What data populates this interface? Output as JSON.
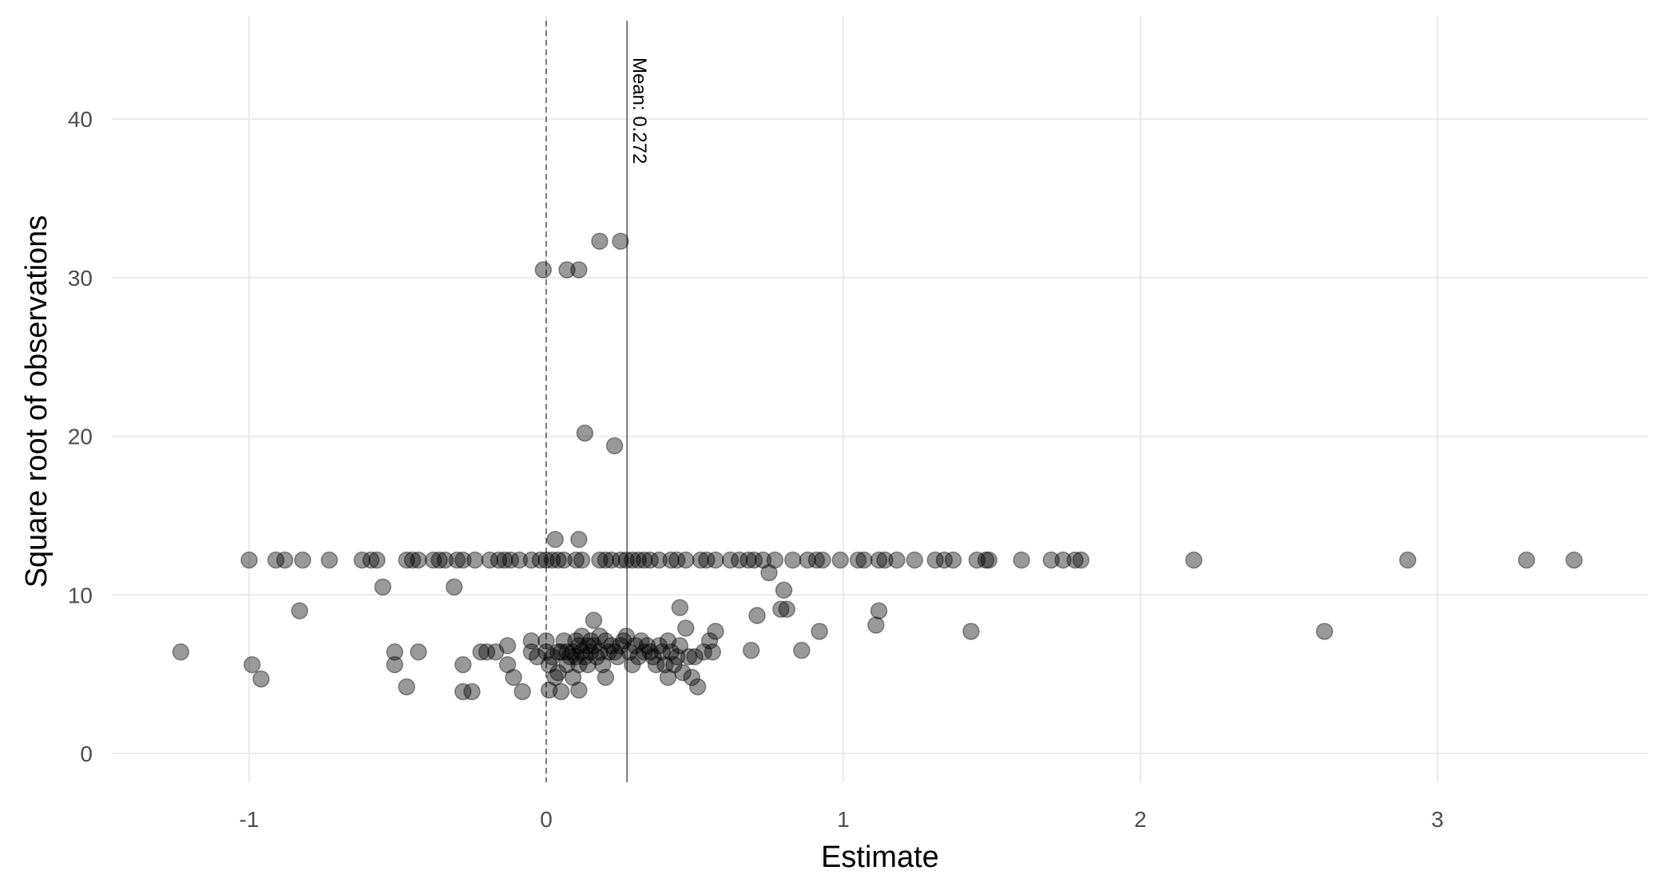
{
  "chart_data": {
    "type": "scatter",
    "xlabel": "Estimate",
    "ylabel": "Square root of observations",
    "xlim": [
      -1.5,
      3.7
    ],
    "ylim": [
      -2,
      46
    ],
    "x_ticks": [
      -1,
      0,
      1,
      2,
      3
    ],
    "y_ticks": [
      0,
      10,
      20,
      30,
      40
    ],
    "grid": true,
    "reference_lines": [
      {
        "x": 0,
        "style": "dashed"
      },
      {
        "x": 0.272,
        "style": "solid",
        "label": "Mean: 0.272"
      }
    ],
    "colors": {
      "point": "#000000",
      "grid": "#ebebeb",
      "tick_text": "#4d4d4d"
    },
    "points": [
      [
        -1.23,
        6.4
      ],
      [
        -0.99,
        5.6
      ],
      [
        -0.96,
        4.7
      ],
      [
        -0.83,
        9.0
      ],
      [
        -0.55,
        10.5
      ],
      [
        -0.51,
        6.4
      ],
      [
        -0.51,
        5.6
      ],
      [
        -0.47,
        4.2
      ],
      [
        -0.43,
        6.4
      ],
      [
        -0.31,
        10.5
      ],
      [
        -0.28,
        5.6
      ],
      [
        -0.28,
        3.9
      ],
      [
        -0.25,
        3.9
      ],
      [
        -0.22,
        6.4
      ],
      [
        -0.2,
        6.4
      ],
      [
        -0.17,
        6.4
      ],
      [
        -0.13,
        6.8
      ],
      [
        -0.13,
        5.6
      ],
      [
        -0.11,
        4.8
      ],
      [
        -0.08,
        3.9
      ],
      [
        -0.05,
        6.4
      ],
      [
        -0.05,
        7.1
      ],
      [
        -0.03,
        6.1
      ],
      [
        0.0,
        7.1
      ],
      [
        0.0,
        6.4
      ],
      [
        0.01,
        5.6
      ],
      [
        0.01,
        4.0
      ],
      [
        0.02,
        6.1
      ],
      [
        0.03,
        4.8
      ],
      [
        0.04,
        6.4
      ],
      [
        0.04,
        5.1
      ],
      [
        0.05,
        6.4
      ],
      [
        0.05,
        3.9
      ],
      [
        0.06,
        7.1
      ],
      [
        0.07,
        6.4
      ],
      [
        0.07,
        5.6
      ],
      [
        0.08,
        6.1
      ],
      [
        0.09,
        6.4
      ],
      [
        0.09,
        4.8
      ],
      [
        0.1,
        7.1
      ],
      [
        0.1,
        6.1
      ],
      [
        0.11,
        6.8
      ],
      [
        0.11,
        5.6
      ],
      [
        0.11,
        4.0
      ],
      [
        0.12,
        7.4
      ],
      [
        0.12,
        6.4
      ],
      [
        0.13,
        6.1
      ],
      [
        0.14,
        6.8
      ],
      [
        0.14,
        5.6
      ],
      [
        0.15,
        7.1
      ],
      [
        0.15,
        6.4
      ],
      [
        0.16,
        8.4
      ],
      [
        0.16,
        6.8
      ],
      [
        0.17,
        6.1
      ],
      [
        0.18,
        7.4
      ],
      [
        0.18,
        6.4
      ],
      [
        0.19,
        5.6
      ],
      [
        0.2,
        4.8
      ],
      [
        0.2,
        7.1
      ],
      [
        0.21,
        6.4
      ],
      [
        0.22,
        6.8
      ],
      [
        0.23,
        6.4
      ],
      [
        0.24,
        6.1
      ],
      [
        0.25,
        6.8
      ],
      [
        0.26,
        7.1
      ],
      [
        0.27,
        7.4
      ],
      [
        0.28,
        6.4
      ],
      [
        0.29,
        5.6
      ],
      [
        0.3,
        6.8
      ],
      [
        0.31,
        6.1
      ],
      [
        0.32,
        7.1
      ],
      [
        0.33,
        6.4
      ],
      [
        0.34,
        6.8
      ],
      [
        0.35,
        6.4
      ],
      [
        0.36,
        6.1
      ],
      [
        0.37,
        5.6
      ],
      [
        0.38,
        6.8
      ],
      [
        0.39,
        6.4
      ],
      [
        0.4,
        5.6
      ],
      [
        0.41,
        7.1
      ],
      [
        0.41,
        4.8
      ],
      [
        0.42,
        6.4
      ],
      [
        0.43,
        5.6
      ],
      [
        0.44,
        6.1
      ],
      [
        0.45,
        9.2
      ],
      [
        0.45,
        6.8
      ],
      [
        0.46,
        5.1
      ],
      [
        0.47,
        7.9
      ],
      [
        0.48,
        6.1
      ],
      [
        0.49,
        4.8
      ],
      [
        0.5,
        6.1
      ],
      [
        0.51,
        4.2
      ],
      [
        0.53,
        6.4
      ],
      [
        0.55,
        7.1
      ],
      [
        0.56,
        6.4
      ],
      [
        0.57,
        7.7
      ],
      [
        0.69,
        6.5
      ],
      [
        0.71,
        8.7
      ],
      [
        0.75,
        11.4
      ],
      [
        0.79,
        9.1
      ],
      [
        0.8,
        10.3
      ],
      [
        0.81,
        9.1
      ],
      [
        0.86,
        6.5
      ],
      [
        0.92,
        7.7
      ],
      [
        1.11,
        8.1
      ],
      [
        1.12,
        9.0
      ],
      [
        1.43,
        7.7
      ],
      [
        2.62,
        7.7
      ],
      [
        0.03,
        13.5
      ],
      [
        0.11,
        13.5
      ],
      [
        0.13,
        20.2
      ],
      [
        0.23,
        19.4
      ],
      [
        -0.01,
        30.5
      ],
      [
        0.07,
        30.5
      ],
      [
        0.11,
        30.5
      ],
      [
        0.18,
        32.3
      ],
      [
        0.25,
        32.3
      ],
      [
        -1.0,
        12.2
      ],
      [
        -0.91,
        12.2
      ],
      [
        -0.88,
        12.2
      ],
      [
        -0.82,
        12.2
      ],
      [
        -0.73,
        12.2
      ],
      [
        -0.62,
        12.2
      ],
      [
        -0.59,
        12.2
      ],
      [
        -0.57,
        12.2
      ],
      [
        -0.47,
        12.2
      ],
      [
        -0.45,
        12.2
      ],
      [
        -0.43,
        12.2
      ],
      [
        -0.38,
        12.2
      ],
      [
        -0.36,
        12.2
      ],
      [
        -0.34,
        12.2
      ],
      [
        -0.3,
        12.2
      ],
      [
        -0.28,
        12.2
      ],
      [
        -0.24,
        12.2
      ],
      [
        -0.19,
        12.2
      ],
      [
        -0.16,
        12.2
      ],
      [
        -0.14,
        12.2
      ],
      [
        -0.12,
        12.2
      ],
      [
        -0.09,
        12.2
      ],
      [
        -0.05,
        12.2
      ],
      [
        -0.02,
        12.2
      ],
      [
        0.0,
        12.2
      ],
      [
        0.02,
        12.2
      ],
      [
        0.04,
        12.2
      ],
      [
        0.06,
        12.2
      ],
      [
        0.1,
        12.2
      ],
      [
        0.12,
        12.2
      ],
      [
        0.18,
        12.2
      ],
      [
        0.2,
        12.2
      ],
      [
        0.22,
        12.2
      ],
      [
        0.25,
        12.2
      ],
      [
        0.27,
        12.2
      ],
      [
        0.29,
        12.2
      ],
      [
        0.31,
        12.2
      ],
      [
        0.33,
        12.2
      ],
      [
        0.35,
        12.2
      ],
      [
        0.38,
        12.2
      ],
      [
        0.42,
        12.2
      ],
      [
        0.44,
        12.2
      ],
      [
        0.47,
        12.2
      ],
      [
        0.52,
        12.2
      ],
      [
        0.54,
        12.2
      ],
      [
        0.57,
        12.2
      ],
      [
        0.62,
        12.2
      ],
      [
        0.65,
        12.2
      ],
      [
        0.68,
        12.2
      ],
      [
        0.7,
        12.2
      ],
      [
        0.73,
        12.2
      ],
      [
        0.77,
        12.2
      ],
      [
        0.83,
        12.2
      ],
      [
        0.88,
        12.2
      ],
      [
        0.91,
        12.2
      ],
      [
        0.93,
        12.2
      ],
      [
        0.99,
        12.2
      ],
      [
        1.05,
        12.2
      ],
      [
        1.07,
        12.2
      ],
      [
        1.12,
        12.2
      ],
      [
        1.14,
        12.2
      ],
      [
        1.18,
        12.2
      ],
      [
        1.24,
        12.2
      ],
      [
        1.31,
        12.2
      ],
      [
        1.34,
        12.2
      ],
      [
        1.37,
        12.2
      ],
      [
        1.45,
        12.2
      ],
      [
        1.48,
        12.2
      ],
      [
        1.49,
        12.2
      ],
      [
        1.6,
        12.2
      ],
      [
        1.7,
        12.2
      ],
      [
        1.74,
        12.2
      ],
      [
        1.78,
        12.2
      ],
      [
        1.8,
        12.2
      ],
      [
        2.18,
        12.2
      ],
      [
        2.9,
        12.2
      ],
      [
        3.3,
        12.2
      ],
      [
        3.46,
        12.2
      ]
    ]
  }
}
